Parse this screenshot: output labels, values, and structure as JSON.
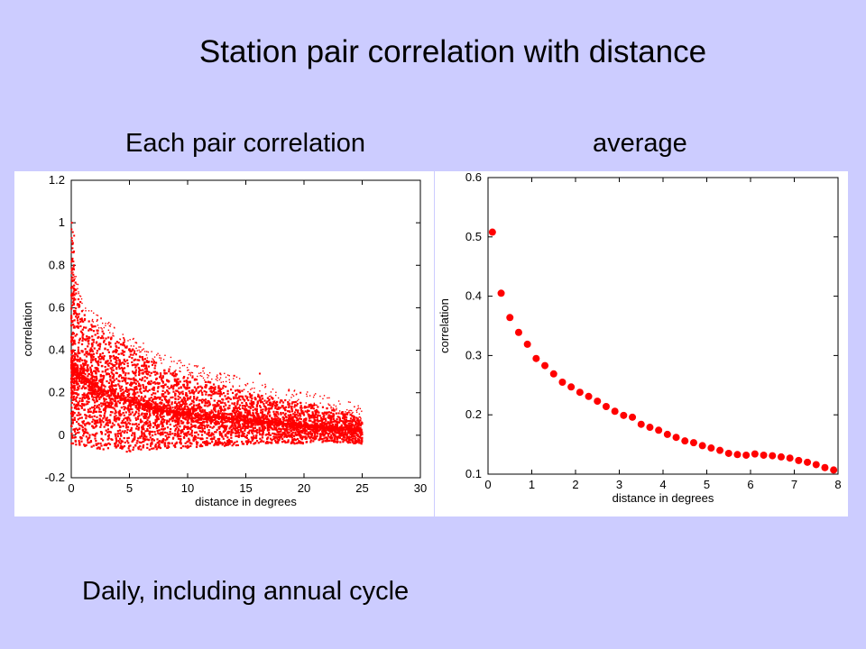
{
  "slide": {
    "title": "Station pair correlation with distance",
    "footer": "Daily, including annual cycle"
  },
  "colors": {
    "marker": "#ff0000",
    "axis": "#000000",
    "background": "#ccccff"
  },
  "chart_data": [
    {
      "type": "scatter",
      "subtitle": "Each pair correlation",
      "xlabel": "distance in degrees",
      "ylabel": "correlation",
      "xlim": [
        0,
        30
      ],
      "ylim": [
        -0.2,
        1.2
      ],
      "xticks": [
        0,
        5,
        10,
        15,
        20,
        25,
        30
      ],
      "yticks": [
        -0.2,
        0,
        0.2,
        0.4,
        0.6,
        0.8,
        1,
        1.2
      ],
      "ytick_labels": [
        "-0.2",
        "0",
        "0.2",
        "0.4",
        "0.6",
        "0.8",
        "1",
        "1.2"
      ],
      "grid": false,
      "envelope": {
        "x": [
          0,
          1,
          2,
          3,
          4,
          5,
          6,
          7,
          8,
          10,
          12,
          14,
          16,
          18,
          20,
          22,
          24,
          25
        ],
        "mean": [
          0.32,
          0.27,
          0.23,
          0.2,
          0.18,
          0.16,
          0.145,
          0.13,
          0.115,
          0.1,
          0.085,
          0.075,
          0.065,
          0.055,
          0.045,
          0.035,
          0.025,
          0.02
        ],
        "upper": [
          0.8,
          0.58,
          0.52,
          0.48,
          0.45,
          0.42,
          0.38,
          0.35,
          0.32,
          0.28,
          0.25,
          0.22,
          0.19,
          0.17,
          0.15,
          0.13,
          0.1,
          0.07
        ],
        "lower": [
          -0.05,
          -0.05,
          -0.06,
          -0.07,
          -0.07,
          -0.08,
          -0.07,
          -0.07,
          -0.06,
          -0.06,
          -0.05,
          -0.05,
          -0.04,
          -0.04,
          -0.04,
          -0.03,
          -0.04,
          -0.04
        ]
      },
      "outliers": [
        {
          "x": 0.05,
          "y": 1.0
        },
        {
          "x": 0.1,
          "y": 0.9
        },
        {
          "x": 12.8,
          "y": 0.29
        },
        {
          "x": 14.0,
          "y": 0.28
        },
        {
          "x": 16.2,
          "y": 0.29
        },
        {
          "x": 18.7,
          "y": 0.21
        },
        {
          "x": 19.7,
          "y": 0.2
        }
      ]
    },
    {
      "type": "scatter",
      "subtitle": "average",
      "xlabel": "distance in degrees",
      "ylabel": "correlation",
      "xlim": [
        0,
        8
      ],
      "ylim": [
        0.1,
        0.6
      ],
      "xticks": [
        0,
        1,
        2,
        3,
        4,
        5,
        6,
        7,
        8
      ],
      "yticks": [
        0.1,
        0.2,
        0.3,
        0.4,
        0.5,
        0.6
      ],
      "ytick_labels": [
        "0.1",
        "0.2",
        "0.3",
        "0.4",
        "0.5",
        "0.6"
      ],
      "grid": false,
      "x": [
        0.1,
        0.3,
        0.5,
        0.7,
        0.9,
        1.1,
        1.3,
        1.5,
        1.7,
        1.9,
        2.1,
        2.3,
        2.5,
        2.7,
        2.9,
        3.1,
        3.3,
        3.5,
        3.7,
        3.9,
        4.1,
        4.3,
        4.5,
        4.7,
        4.9,
        5.1,
        5.3,
        5.5,
        5.7,
        5.9,
        6.1,
        6.3,
        6.5,
        6.7,
        6.9,
        7.1,
        7.3,
        7.5,
        7.7,
        7.9
      ],
      "y": [
        0.508,
        0.405,
        0.364,
        0.339,
        0.319,
        0.295,
        0.283,
        0.269,
        0.255,
        0.247,
        0.238,
        0.231,
        0.223,
        0.214,
        0.206,
        0.199,
        0.196,
        0.184,
        0.179,
        0.174,
        0.167,
        0.162,
        0.156,
        0.153,
        0.148,
        0.144,
        0.14,
        0.135,
        0.133,
        0.132,
        0.134,
        0.132,
        0.131,
        0.129,
        0.127,
        0.123,
        0.12,
        0.116,
        0.111,
        0.107
      ]
    }
  ]
}
